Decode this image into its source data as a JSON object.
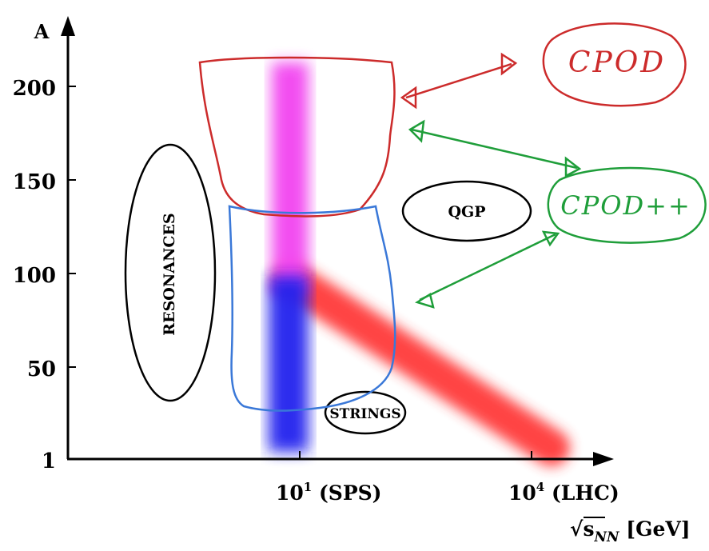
{
  "axes": {
    "y_label": "A",
    "y_ticks": [
      "200",
      "150",
      "100",
      "50",
      "1"
    ],
    "x_ticks": [
      {
        "base": "10",
        "exp": "1",
        "suffix": " (SPS)"
      },
      {
        "base": "10",
        "exp": "4",
        "suffix": " (LHC)"
      }
    ],
    "x_label": {
      "sqrt": "√",
      "s": "s",
      "sub": "NN",
      "unit": " [GeV]"
    }
  },
  "regions": {
    "resonances": "RESONANCES",
    "qgp": "QGP",
    "strings": "STRINGS"
  },
  "handwritten": {
    "cpod": "CPOD",
    "cpod_plus": "CPOD++"
  },
  "colors": {
    "cpod": "#cc2b2b",
    "cpod_plus": "#1f9e3a",
    "blue_outline": "#3a78d8",
    "band_blue": "#2a2af0",
    "band_magenta": "#f03cf0",
    "band_red": "#ff3333",
    "axis": "#000000"
  }
}
